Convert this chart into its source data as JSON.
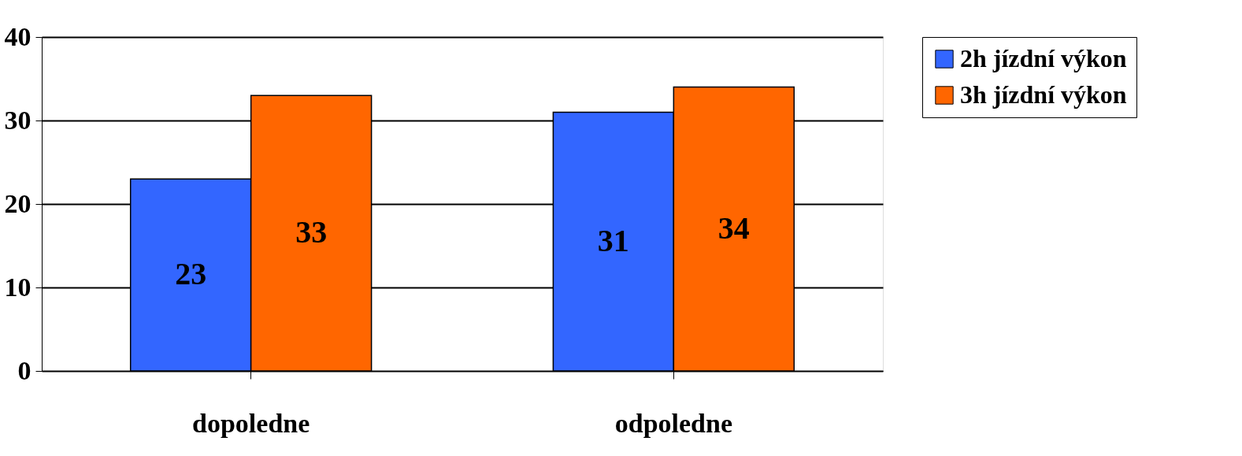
{
  "chart_data": {
    "type": "bar",
    "categories": [
      "dopoledne",
      "odpoledne"
    ],
    "series": [
      {
        "name": "2h jízdní výkon",
        "color": "#3366ff",
        "values": [
          23,
          31
        ]
      },
      {
        "name": "3h jízdní výkon",
        "color": "#ff6600",
        "values": [
          33,
          34
        ]
      }
    ],
    "ylim": [
      0,
      40
    ],
    "yticks": [
      0,
      10,
      20,
      30,
      40
    ],
    "grid": "y",
    "legend": "right",
    "data_labels": true
  }
}
